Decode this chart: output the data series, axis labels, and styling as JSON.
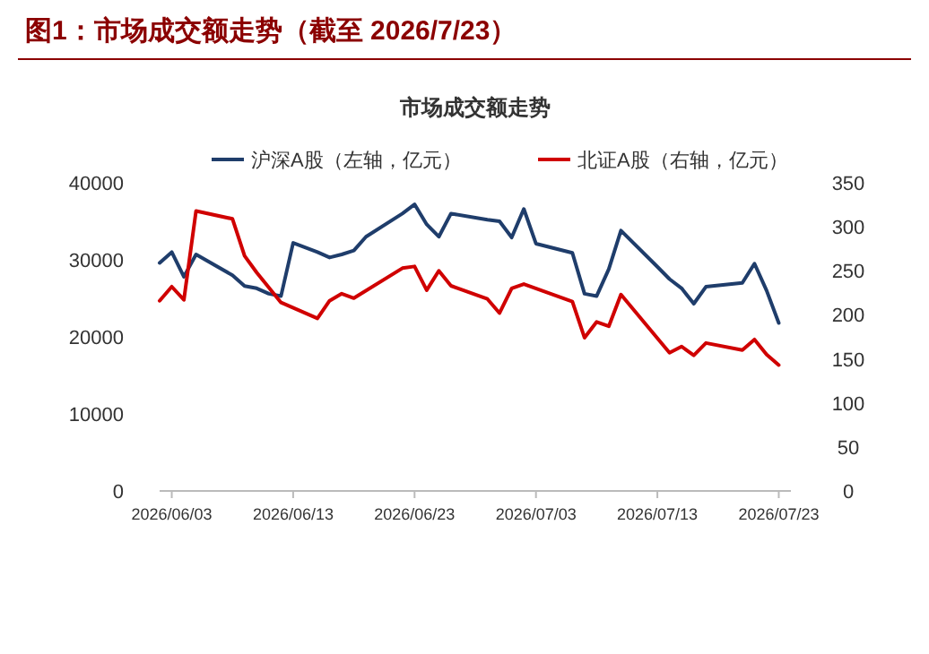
{
  "chart_data": {
    "type": "line",
    "title": "图1：市场成交额走势（截至 2026/7/23）",
    "subtitle": "市场成交额走势",
    "legend": "top",
    "grid": false,
    "marker": "none",
    "line_style": "solid",
    "xlim": [
      "2026-06-02",
      "2026-07-24"
    ],
    "xticks": [
      {
        "value": "2026-06-03",
        "label": "2026/06/03"
      },
      {
        "value": "2026-06-13",
        "label": "2026/06/13"
      },
      {
        "value": "2026-06-23",
        "label": "2026/06/23"
      },
      {
        "value": "2026-07-03",
        "label": "2026/07/03"
      },
      {
        "value": "2026-07-13",
        "label": "2026/07/13"
      },
      {
        "value": "2026-07-23",
        "label": "2026/07/23"
      }
    ],
    "ylim": [
      0,
      40000
    ],
    "yticks": [
      0,
      10000,
      20000,
      30000,
      40000
    ],
    "y2lim": [
      0,
      350
    ],
    "y2ticks": [
      0,
      50,
      100,
      150,
      200,
      250,
      300,
      350
    ],
    "series": [
      {
        "name": "沪深A股（左轴，亿元）",
        "color": "#1f3d6b",
        "x": [
          "2026-06-02",
          "2026-06-03",
          "2026-06-04",
          "2026-06-05",
          "2026-06-08",
          "2026-06-09",
          "2026-06-10",
          "2026-06-11",
          "2026-06-12",
          "2026-06-13",
          "2026-06-15",
          "2026-06-16",
          "2026-06-17",
          "2026-06-18",
          "2026-06-19",
          "2026-06-22",
          "2026-06-23",
          "2026-06-24",
          "2026-06-25",
          "2026-06-26",
          "2026-06-29",
          "2026-06-30",
          "2026-07-01",
          "2026-07-02",
          "2026-07-03",
          "2026-07-06",
          "2026-07-07",
          "2026-07-08",
          "2026-07-09",
          "2026-07-10",
          "2026-07-13",
          "2026-07-14",
          "2026-07-15",
          "2026-07-16",
          "2026-07-17",
          "2026-07-20",
          "2026-07-21",
          "2026-07-22",
          "2026-07-23"
        ],
        "values": [
          29600,
          31000,
          27800,
          30700,
          28000,
          26600,
          26300,
          25600,
          25300,
          32200,
          31000,
          30300,
          30700,
          31200,
          33000,
          36000,
          37200,
          34600,
          33000,
          36000,
          35200,
          35000,
          32900,
          36600,
          32100,
          30900,
          25600,
          25300,
          28800,
          33800,
          29100,
          27500,
          26300,
          24300,
          26500,
          27000,
          29500,
          26000,
          21800
        ]
      },
      {
        "name": "北证A股（右轴，亿元）",
        "color": "#d00000",
        "axis": "y2",
        "x": [
          "2026-06-02",
          "2026-06-03",
          "2026-06-04",
          "2026-06-05",
          "2026-06-08",
          "2026-06-09",
          "2026-06-10",
          "2026-06-12",
          "2026-06-15",
          "2026-06-16",
          "2026-06-17",
          "2026-06-18",
          "2026-06-22",
          "2026-06-23",
          "2026-06-24",
          "2026-06-25",
          "2026-06-26",
          "2026-06-29",
          "2026-06-30",
          "2026-07-01",
          "2026-07-02",
          "2026-07-06",
          "2026-07-07",
          "2026-07-08",
          "2026-07-09",
          "2026-07-10",
          "2026-07-14",
          "2026-07-15",
          "2026-07-16",
          "2026-07-17",
          "2026-07-20",
          "2026-07-21",
          "2026-07-22",
          "2026-07-23"
        ],
        "values": [
          216,
          232,
          217,
          318,
          309,
          267,
          248,
          214,
          196,
          216,
          224,
          219,
          253,
          255,
          228,
          250,
          233,
          218,
          202,
          230,
          235,
          215,
          174,
          192,
          187,
          223,
          157,
          164,
          154,
          168,
          160,
          172,
          155,
          143
        ]
      }
    ]
  }
}
